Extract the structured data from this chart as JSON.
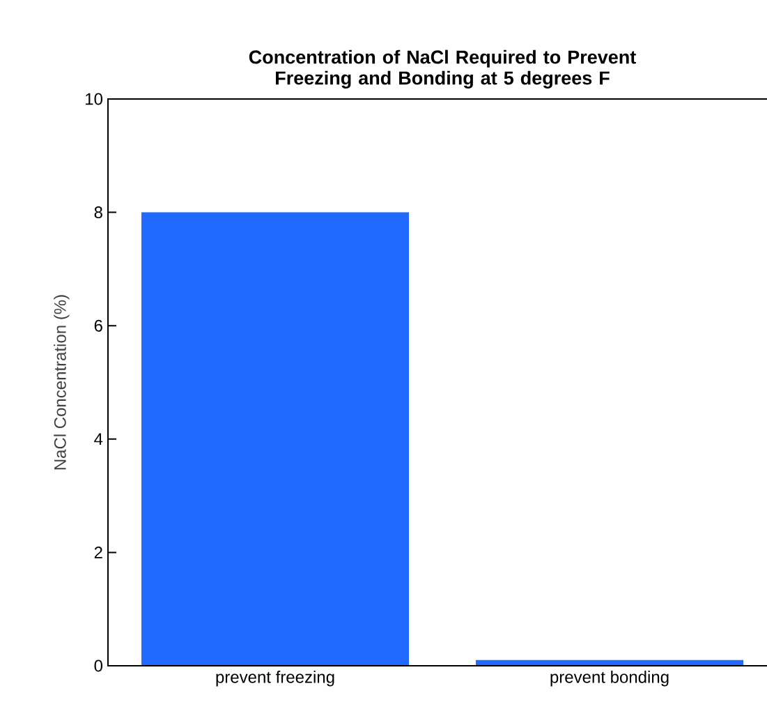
{
  "chart_data": {
    "type": "bar",
    "title": "Concentration of NaCl Required to Prevent Freezing and Bonding at 5 degrees F",
    "ylabel": "NaCl Concentration (%)",
    "categories": [
      "prevent freezing",
      "prevent bonding"
    ],
    "values": [
      8,
      0.1
    ],
    "color": "#2269ff",
    "ylim": [
      0,
      10
    ],
    "yticks": [
      0,
      2,
      4,
      6,
      8,
      10
    ]
  }
}
